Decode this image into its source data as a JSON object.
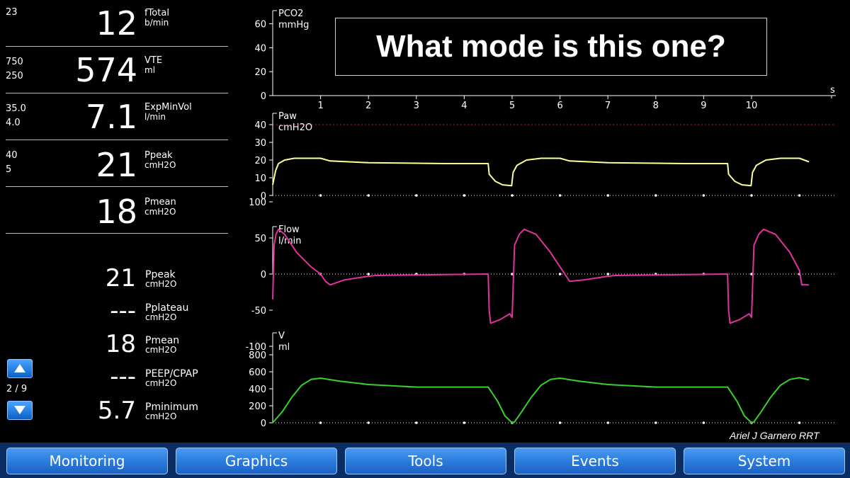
{
  "params": [
    {
      "limits": [
        "23"
      ],
      "value": "12",
      "name": "fTotal",
      "unit": "b/min"
    },
    {
      "limits": [
        "750",
        "250"
      ],
      "value": "574",
      "name": "VTE",
      "unit": "ml"
    },
    {
      "limits": [
        "35.0",
        "4.0"
      ],
      "value": "7.1",
      "name": "ExpMinVol",
      "unit": "l/min"
    },
    {
      "limits": [
        "40",
        "5"
      ],
      "value": "21",
      "name": "Ppeak",
      "unit": "cmH2O"
    },
    {
      "limits": [],
      "value": "18",
      "name": "Pmean",
      "unit": "cmH2O"
    }
  ],
  "secondary": [
    {
      "value": "21",
      "name": "Ppeak",
      "unit": "cmH2O"
    },
    {
      "value": "---",
      "name": "Pplateau",
      "unit": "cmH2O"
    },
    {
      "value": "18",
      "name": "Pmean",
      "unit": "cmH2O"
    },
    {
      "value": "---",
      "name": "PEEP/CPAP",
      "unit": "cmH2O"
    },
    {
      "value": "5.7",
      "name": "Pminimum",
      "unit": "cmH2O"
    }
  ],
  "pager": {
    "text": "2 / 9",
    "up_icon": "arrow-up-icon",
    "down_icon": "arrow-down-icon"
  },
  "question": "What mode is this one?",
  "credit": "Ariel J Garnero RRT",
  "menu": [
    "Monitoring",
    "Graphics",
    "Tools",
    "Events",
    "System"
  ],
  "colors": {
    "paw": "#ffff99",
    "flow": "#e0339c",
    "volume": "#39d12b",
    "limit_line": "#c0203a",
    "menu_button": "#2d7fe0"
  },
  "chart_data": [
    {
      "type": "line",
      "title": "PCO2",
      "ylabel": "mmHg",
      "xlabel": "s",
      "yticks": [
        0,
        20,
        40,
        60
      ],
      "ylim": [
        0,
        70
      ],
      "xticks": [
        1,
        2,
        3,
        4,
        5,
        6,
        7,
        8,
        9,
        10
      ],
      "series": []
    },
    {
      "type": "line",
      "title": "Paw",
      "ylabel": "cmH2O",
      "yticks": [
        0,
        10,
        20,
        30,
        40
      ],
      "ylim": [
        0,
        45
      ],
      "limit": 40,
      "x": [
        0,
        0.06,
        0.12,
        0.25,
        0.45,
        1.0,
        1.2,
        2.0,
        3.0,
        3.6,
        4.5,
        4.52,
        4.65,
        4.8,
        4.99,
        5.02,
        5.1,
        5.3,
        5.6,
        6.0,
        6.2,
        7.0,
        8.0,
        8.6,
        9.5,
        9.52,
        9.65,
        9.8,
        9.99,
        10.02,
        10.1,
        10.3,
        10.6,
        11.0,
        11.2
      ],
      "series": [
        {
          "values": [
            6,
            14,
            18,
            20,
            21,
            21,
            19.5,
            18.5,
            18.2,
            18,
            18,
            12,
            8,
            6,
            5.5,
            13,
            17,
            20,
            21,
            21,
            19.5,
            18.5,
            18.2,
            18,
            18,
            12,
            8,
            6,
            5.5,
            13,
            17,
            20,
            21,
            21,
            19
          ]
        }
      ]
    },
    {
      "type": "line",
      "title": "Flow",
      "ylabel": "l/min",
      "yticks": [
        -100,
        -50,
        0,
        50,
        100
      ],
      "ylim": [
        -110,
        110
      ],
      "x": [
        0,
        0.03,
        0.07,
        0.12,
        0.25,
        0.5,
        0.8,
        1.0,
        1.1,
        1.2,
        1.5,
        2.0,
        2.15,
        4.5,
        4.52,
        4.55,
        4.75,
        4.95,
        5.0,
        5.05,
        5.15,
        5.25,
        5.5,
        5.8,
        6.0,
        6.1,
        6.2,
        6.5,
        7.0,
        7.15,
        9.5,
        9.52,
        9.55,
        9.75,
        9.95,
        10.0,
        10.05,
        10.15,
        10.25,
        10.5,
        10.8,
        11.0,
        11.05,
        11.2
      ],
      "series": [
        {
          "values": [
            -35,
            40,
            55,
            62,
            55,
            30,
            10,
            0,
            -10,
            -15,
            -8,
            -3,
            -2,
            0,
            -50,
            -68,
            -63,
            -55,
            -60,
            40,
            55,
            62,
            55,
            30,
            10,
            0,
            -10,
            -8,
            -3,
            -2,
            0,
            -50,
            -68,
            -63,
            -55,
            -60,
            40,
            55,
            62,
            55,
            30,
            5,
            -15,
            -15
          ]
        }
      ]
    },
    {
      "type": "line",
      "title": "V",
      "ylabel": "ml",
      "yticks": [
        0,
        200,
        400,
        600,
        800
      ],
      "ylim": [
        0,
        900
      ],
      "x": [
        0,
        0.2,
        0.4,
        0.6,
        0.8,
        1.0,
        1.4,
        2.0,
        3.0,
        4.5,
        4.7,
        4.85,
        5.0,
        5.05,
        5.2,
        5.4,
        5.6,
        5.8,
        6.0,
        6.4,
        7.0,
        8.0,
        9.5,
        9.7,
        9.85,
        10.0,
        10.05,
        10.2,
        10.4,
        10.6,
        10.8,
        11.0,
        11.2
      ],
      "series": [
        {
          "values": [
            0,
            130,
            300,
            440,
            510,
            525,
            490,
            450,
            420,
            420,
            250,
            80,
            0,
            10,
            130,
            300,
            440,
            510,
            525,
            490,
            450,
            420,
            420,
            250,
            80,
            0,
            10,
            130,
            300,
            440,
            510,
            530,
            505
          ]
        }
      ]
    }
  ]
}
